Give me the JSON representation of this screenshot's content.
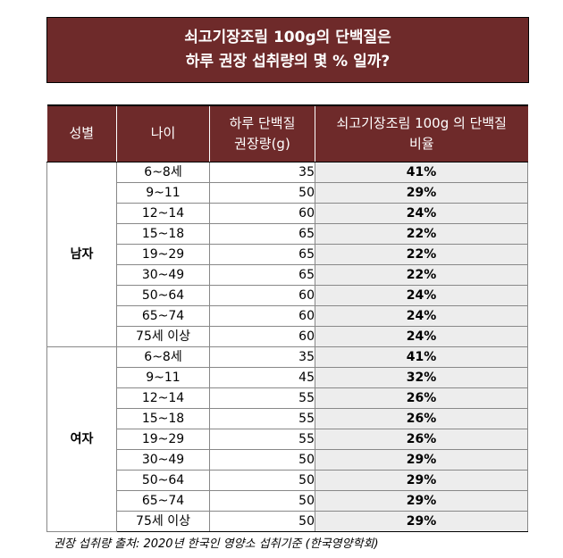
{
  "title": {
    "line1": "쇠고기장조림 100g의 단백질은",
    "line2": "하루 권장 섭취량의 몇 % 일까?"
  },
  "table": {
    "headers": {
      "gender": "성별",
      "age": "나이",
      "amount_line1": "하루 단백질",
      "amount_line2": "권장량(g)",
      "ratio_line1": "쇠고기장조림 100g 의 단백질",
      "ratio_line2": "비율"
    },
    "groups": [
      {
        "gender": "남자",
        "rows": [
          {
            "age": "6~8세",
            "amount": "35",
            "ratio": "41%"
          },
          {
            "age": "9~11",
            "amount": "50",
            "ratio": "29%"
          },
          {
            "age": "12~14",
            "amount": "60",
            "ratio": "24%"
          },
          {
            "age": "15~18",
            "amount": "65",
            "ratio": "22%"
          },
          {
            "age": "19~29",
            "amount": "65",
            "ratio": "22%"
          },
          {
            "age": "30~49",
            "amount": "65",
            "ratio": "22%"
          },
          {
            "age": "50~64",
            "amount": "60",
            "ratio": "24%"
          },
          {
            "age": "65~74",
            "amount": "60",
            "ratio": "24%"
          },
          {
            "age": "75세 이상",
            "amount": "60",
            "ratio": "24%"
          }
        ]
      },
      {
        "gender": "여자",
        "rows": [
          {
            "age": "6~8세",
            "amount": "35",
            "ratio": "41%"
          },
          {
            "age": "9~11",
            "amount": "45",
            "ratio": "32%"
          },
          {
            "age": "12~14",
            "amount": "55",
            "ratio": "26%"
          },
          {
            "age": "15~18",
            "amount": "55",
            "ratio": "26%"
          },
          {
            "age": "19~29",
            "amount": "55",
            "ratio": "26%"
          },
          {
            "age": "30~49",
            "amount": "50",
            "ratio": "29%"
          },
          {
            "age": "50~64",
            "amount": "50",
            "ratio": "29%"
          },
          {
            "age": "65~74",
            "amount": "50",
            "ratio": "29%"
          },
          {
            "age": "75세 이상",
            "amount": "50",
            "ratio": "29%"
          }
        ]
      }
    ]
  },
  "source": "권장 섭취량 출처: 2020년 한국인 영양소 섭취기준 (한국영양학회)",
  "colors": {
    "header_bg": "#6e2a2a",
    "ratio_bg": "#ededed"
  }
}
